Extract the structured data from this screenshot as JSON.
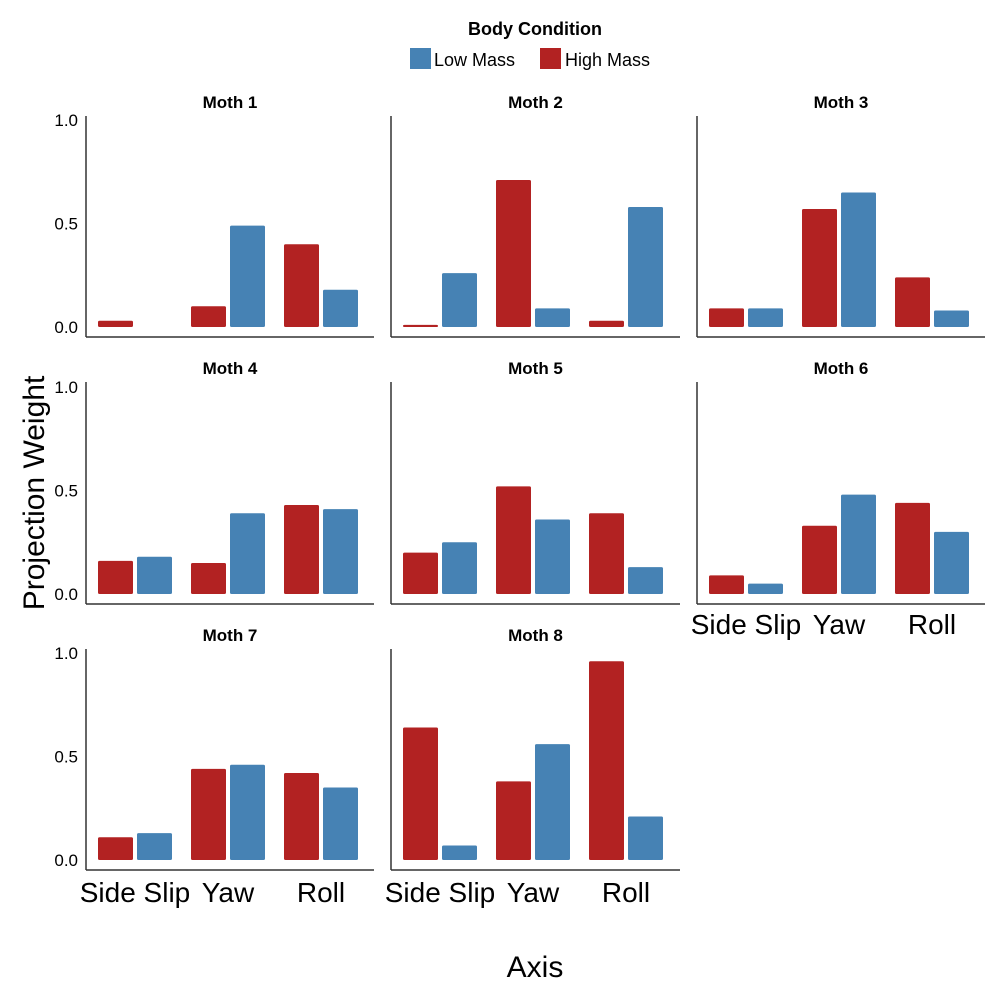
{
  "chart_data": {
    "type": "bar",
    "xlabel": "Axis",
    "ylabel": "Projection Weight",
    "ylim": [
      0,
      1.0
    ],
    "yticks": [
      "0.0",
      "0.5",
      "1.0"
    ],
    "yticks_values": [
      0,
      0.5,
      1.0
    ],
    "grid": false,
    "legend": {
      "title": "Body Condition",
      "placement": "top-center",
      "entries": [
        {
          "name": "Low Mass",
          "color": "#4682B4"
        },
        {
          "name": "High Mass",
          "color": "#B22222"
        }
      ]
    },
    "categories": [
      "Side Slip",
      "Yaw",
      "Roll"
    ],
    "bar_order": [
      "High Mass",
      "Low Mass"
    ],
    "facets": [
      {
        "title": "Moth 1",
        "series": {
          "High Mass": [
            0.03,
            0.1,
            0.4
          ],
          "Low Mass": [
            0.0,
            0.49,
            0.18
          ]
        }
      },
      {
        "title": "Moth 2",
        "series": {
          "High Mass": [
            0.01,
            0.71,
            0.03
          ],
          "Low Mass": [
            0.26,
            0.09,
            0.58
          ]
        }
      },
      {
        "title": "Moth 3",
        "series": {
          "High Mass": [
            0.09,
            0.57,
            0.24
          ],
          "Low Mass": [
            0.09,
            0.65,
            0.08
          ]
        }
      },
      {
        "title": "Moth 4",
        "series": {
          "High Mass": [
            0.16,
            0.15,
            0.43
          ],
          "Low Mass": [
            0.18,
            0.39,
            0.41
          ]
        }
      },
      {
        "title": "Moth 5",
        "series": {
          "High Mass": [
            0.2,
            0.52,
            0.39
          ],
          "Low Mass": [
            0.25,
            0.36,
            0.13
          ]
        }
      },
      {
        "title": "Moth 6",
        "series": {
          "High Mass": [
            0.09,
            0.33,
            0.44
          ],
          "Low Mass": [
            0.05,
            0.48,
            0.3
          ]
        }
      },
      {
        "title": "Moth 7",
        "series": {
          "High Mass": [
            0.11,
            0.44,
            0.42
          ],
          "Low Mass": [
            0.13,
            0.46,
            0.35
          ]
        }
      },
      {
        "title": "Moth 8",
        "series": {
          "High Mass": [
            0.64,
            0.38,
            0.96
          ],
          "Low Mass": [
            0.07,
            0.56,
            0.21
          ]
        }
      }
    ]
  }
}
